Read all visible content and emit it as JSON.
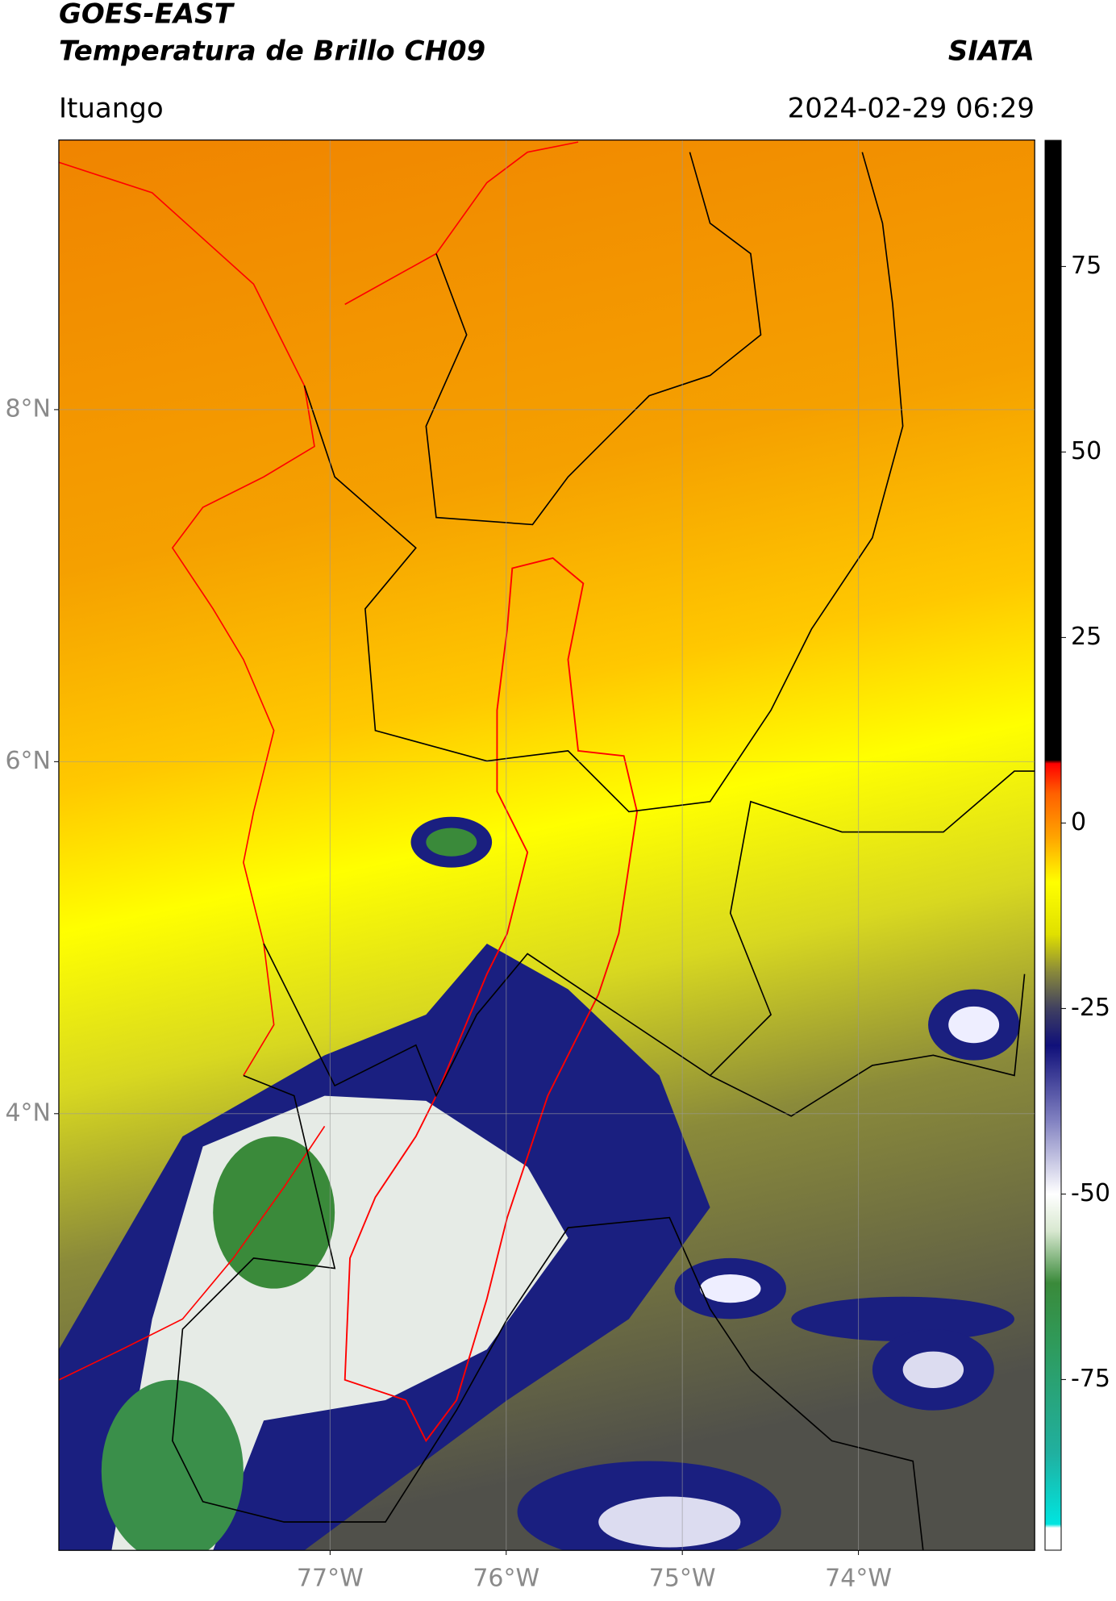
{
  "header": {
    "title": "GOES-EAST",
    "subtitle": "Temperatura de Brillo CH09",
    "agency": "SIATA",
    "location": "Ituango",
    "datetime": "2024-02-29 06:29"
  },
  "map": {
    "type": "map",
    "lonlim": [
      -78.54,
      -73.0
    ],
    "latlim": [
      1.52,
      9.53
    ],
    "grid": true,
    "lonticks": [
      {
        "value": -77,
        "label": "77°W"
      },
      {
        "value": -76,
        "label": "76°W"
      },
      {
        "value": -75,
        "label": "75°W"
      },
      {
        "value": -74,
        "label": "74°W"
      }
    ],
    "latticks": [
      {
        "value": 4,
        "label": "4°N"
      },
      {
        "value": 6,
        "label": "6°N"
      },
      {
        "value": 8,
        "label": "8°N"
      }
    ]
  },
  "colorbar": {
    "lim": [
      -98,
      92
    ],
    "ticks": [
      -75,
      -50,
      -25,
      0,
      25,
      50,
      75
    ],
    "colorscale": [
      {
        "value": -98,
        "color": "#ffffff"
      },
      {
        "value": -95,
        "color": "#ffffff"
      },
      {
        "value": -94.5,
        "color": "#00e5e0"
      },
      {
        "value": -85,
        "color": "#20b0a0"
      },
      {
        "value": -70,
        "color": "#2f9a5a"
      },
      {
        "value": -62,
        "color": "#3a8a3a"
      },
      {
        "value": -55,
        "color": "#d8e8d0"
      },
      {
        "value": -50,
        "color": "#ffffff"
      },
      {
        "value": -40,
        "color": "#8080c0"
      },
      {
        "value": -30,
        "color": "#10107a"
      },
      {
        "value": -25,
        "color": "#404060"
      },
      {
        "value": -20,
        "color": "#8a8a3a"
      },
      {
        "value": -15,
        "color": "#e0e000"
      },
      {
        "value": -8,
        "color": "#ffff00"
      },
      {
        "value": -2,
        "color": "#ffa500"
      },
      {
        "value": 4,
        "color": "#ff6000"
      },
      {
        "value": 8,
        "color": "#ff0000"
      },
      {
        "value": 8.5,
        "color": "#000000"
      },
      {
        "value": 92,
        "color": "#000000"
      }
    ]
  }
}
